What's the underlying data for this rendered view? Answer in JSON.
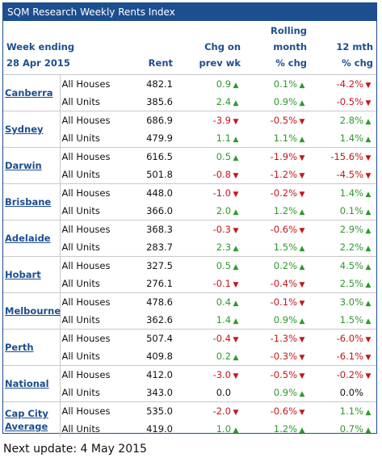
{
  "title": "SQM Research Weekly Rents Index",
  "header": {
    "week_label": "Week ending",
    "date": "28 Apr 2015",
    "rent": "Rent",
    "chg_line1": "Chg on",
    "chg_line2": "prev wk",
    "rolling_line1": "Rolling",
    "rolling_line2": "month",
    "rolling_line3": "% chg",
    "yr_line1": "12 mth",
    "yr_line2": "% chg"
  },
  "arrows": {
    "up": "▲",
    "down": "▼"
  },
  "colors": {
    "brand": "#1d4e8f",
    "up": "#2c9a2c",
    "down": "#c4161c"
  },
  "groups": [
    {
      "city": "Canberra",
      "rows": [
        {
          "type": "All Houses",
          "rent": "482.1",
          "chg": "0.9",
          "chg_dir": "up",
          "month": "0.1%",
          "month_dir": "up",
          "yr": "-4.2%",
          "yr_dir": "down"
        },
        {
          "type": "All Units",
          "rent": "385.6",
          "chg": "2.4",
          "chg_dir": "up",
          "month": "0.9%",
          "month_dir": "up",
          "yr": "-0.5%",
          "yr_dir": "down"
        }
      ]
    },
    {
      "city": "Sydney",
      "rows": [
        {
          "type": "All Houses",
          "rent": "686.9",
          "chg": "-3.9",
          "chg_dir": "down",
          "month": "-0.5%",
          "month_dir": "down",
          "yr": "2.8%",
          "yr_dir": "up"
        },
        {
          "type": "All Units",
          "rent": "479.9",
          "chg": "1.1",
          "chg_dir": "up",
          "month": "1.1%",
          "month_dir": "up",
          "yr": "1.4%",
          "yr_dir": "up"
        }
      ]
    },
    {
      "city": "Darwin",
      "rows": [
        {
          "type": "All Houses",
          "rent": "616.5",
          "chg": "0.5",
          "chg_dir": "up",
          "month": "-1.9%",
          "month_dir": "down",
          "yr": "-15.6%",
          "yr_dir": "down"
        },
        {
          "type": "All Units",
          "rent": "501.8",
          "chg": "-0.8",
          "chg_dir": "down",
          "month": "-1.2%",
          "month_dir": "down",
          "yr": "-4.5%",
          "yr_dir": "down"
        }
      ]
    },
    {
      "city": "Brisbane",
      "rows": [
        {
          "type": "All Houses",
          "rent": "448.0",
          "chg": "-1.0",
          "chg_dir": "down",
          "month": "-0.2%",
          "month_dir": "down",
          "yr": "1.4%",
          "yr_dir": "up"
        },
        {
          "type": "All Units",
          "rent": "366.0",
          "chg": "2.0",
          "chg_dir": "up",
          "month": "1.2%",
          "month_dir": "up",
          "yr": "0.1%",
          "yr_dir": "up"
        }
      ]
    },
    {
      "city": "Adelaide",
      "rows": [
        {
          "type": "All Houses",
          "rent": "368.3",
          "chg": "-0.3",
          "chg_dir": "down",
          "month": "-0.6%",
          "month_dir": "down",
          "yr": "2.9%",
          "yr_dir": "up"
        },
        {
          "type": "All Units",
          "rent": "283.7",
          "chg": "2.3",
          "chg_dir": "up",
          "month": "1.5%",
          "month_dir": "up",
          "yr": "2.2%",
          "yr_dir": "up"
        }
      ]
    },
    {
      "city": "Hobart",
      "rows": [
        {
          "type": "All Houses",
          "rent": "327.5",
          "chg": "0.5",
          "chg_dir": "up",
          "month": "0.2%",
          "month_dir": "up",
          "yr": "4.5%",
          "yr_dir": "up"
        },
        {
          "type": "All Units",
          "rent": "276.1",
          "chg": "-0.1",
          "chg_dir": "down",
          "month": "-0.4%",
          "month_dir": "down",
          "yr": "2.5%",
          "yr_dir": "up"
        }
      ]
    },
    {
      "city": "Melbourne",
      "rows": [
        {
          "type": "All Houses",
          "rent": "478.6",
          "chg": "0.4",
          "chg_dir": "up",
          "month": "-0.1%",
          "month_dir": "down",
          "yr": "3.0%",
          "yr_dir": "up"
        },
        {
          "type": "All Units",
          "rent": "362.6",
          "chg": "1.4",
          "chg_dir": "up",
          "month": "0.9%",
          "month_dir": "up",
          "yr": "1.5%",
          "yr_dir": "up"
        }
      ]
    },
    {
      "city": "Perth",
      "rows": [
        {
          "type": "All Houses",
          "rent": "507.4",
          "chg": "-0.4",
          "chg_dir": "down",
          "month": "-1.3%",
          "month_dir": "down",
          "yr": "-6.0%",
          "yr_dir": "down"
        },
        {
          "type": "All Units",
          "rent": "409.8",
          "chg": "0.2",
          "chg_dir": "up",
          "month": "-0.3%",
          "month_dir": "down",
          "yr": "-6.1%",
          "yr_dir": "down"
        }
      ]
    },
    {
      "city": "National",
      "rows": [
        {
          "type": "All Houses",
          "rent": "412.0",
          "chg": "-3.0",
          "chg_dir": "down",
          "month": "-0.5%",
          "month_dir": "down",
          "yr": "-0.2%",
          "yr_dir": "down"
        },
        {
          "type": "All Units",
          "rent": "343.0",
          "chg": "0.0",
          "chg_dir": "none",
          "month": "0.9%",
          "month_dir": "up",
          "yr": "0.0%",
          "yr_dir": "none"
        }
      ]
    },
    {
      "city": "Cap City Average",
      "rows": [
        {
          "type": "All Houses",
          "rent": "535.0",
          "chg": "-2.0",
          "chg_dir": "down",
          "month": "-0.6%",
          "month_dir": "down",
          "yr": "1.1%",
          "yr_dir": "up"
        },
        {
          "type": "All Units",
          "rent": "419.0",
          "chg": "1.0",
          "chg_dir": "up",
          "month": "1.2%",
          "month_dir": "up",
          "yr": "0.7%",
          "yr_dir": "up"
        }
      ]
    }
  ],
  "footer": "Next update: 4 May 2015"
}
